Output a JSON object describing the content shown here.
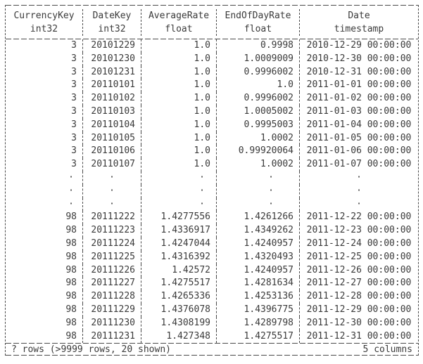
{
  "colors": {
    "text": "#3a3a3a",
    "border": "#4a4a4a",
    "background": "#ffffff"
  },
  "table": {
    "columns": [
      {
        "name": "CurrencyKey",
        "type": "int32"
      },
      {
        "name": "DateKey",
        "type": "int32"
      },
      {
        "name": "AverageRate",
        "type": "float"
      },
      {
        "name": "EndOfDayRate",
        "type": "float"
      },
      {
        "name": "Date",
        "type": "timestamp"
      }
    ],
    "rows": [
      [
        "3",
        "20101229",
        "1.0",
        "0.9998",
        "2010-12-29 00:00:00"
      ],
      [
        "3",
        "20101230",
        "1.0",
        "1.0009009",
        "2010-12-30 00:00:00"
      ],
      [
        "3",
        "20101231",
        "1.0",
        "0.9996002",
        "2010-12-31 00:00:00"
      ],
      [
        "3",
        "20110101",
        "1.0",
        "1.0",
        "2011-01-01 00:00:00"
      ],
      [
        "3",
        "20110102",
        "1.0",
        "0.9996002",
        "2011-01-02 00:00:00"
      ],
      [
        "3",
        "20110103",
        "1.0",
        "1.0005002",
        "2011-01-03 00:00:00"
      ],
      [
        "3",
        "20110104",
        "1.0",
        "0.9995003",
        "2011-01-04 00:00:00"
      ],
      [
        "3",
        "20110105",
        "1.0",
        "1.0002",
        "2011-01-05 00:00:00"
      ],
      [
        "3",
        "20110106",
        "1.0",
        "0.99920064",
        "2011-01-06 00:00:00"
      ],
      [
        "3",
        "20110107",
        "1.0",
        "1.0002",
        "2011-01-07 00:00:00"
      ],
      [
        "·",
        "·",
        "·",
        "·",
        "·"
      ],
      [
        "·",
        "·",
        "·",
        "·",
        "·"
      ],
      [
        "·",
        "·",
        "·",
        "·",
        "·"
      ],
      [
        "98",
        "20111222",
        "1.4277556",
        "1.4261266",
        "2011-12-22 00:00:00"
      ],
      [
        "98",
        "20111223",
        "1.4336917",
        "1.4349262",
        "2011-12-23 00:00:00"
      ],
      [
        "98",
        "20111224",
        "1.4247044",
        "1.4240957",
        "2011-12-24 00:00:00"
      ],
      [
        "98",
        "20111225",
        "1.4316392",
        "1.4320493",
        "2011-12-25 00:00:00"
      ],
      [
        "98",
        "20111226",
        "1.42572",
        "1.4240957",
        "2011-12-26 00:00:00"
      ],
      [
        "98",
        "20111227",
        "1.4275517",
        "1.4281634",
        "2011-12-27 00:00:00"
      ],
      [
        "98",
        "20111228",
        "1.4265336",
        "1.4253136",
        "2011-12-28 00:00:00"
      ],
      [
        "98",
        "20111229",
        "1.4376078",
        "1.4396775",
        "2011-12-29 00:00:00"
      ],
      [
        "98",
        "20111230",
        "1.4308199",
        "1.4289798",
        "2011-12-30 00:00:00"
      ],
      [
        "98",
        "20111231",
        "1.427348",
        "1.4275517",
        "2011-12-31 00:00:00"
      ]
    ],
    "footer": {
      "left": "? rows (>9999 rows, 20 shown)",
      "right": "5 columns"
    }
  }
}
